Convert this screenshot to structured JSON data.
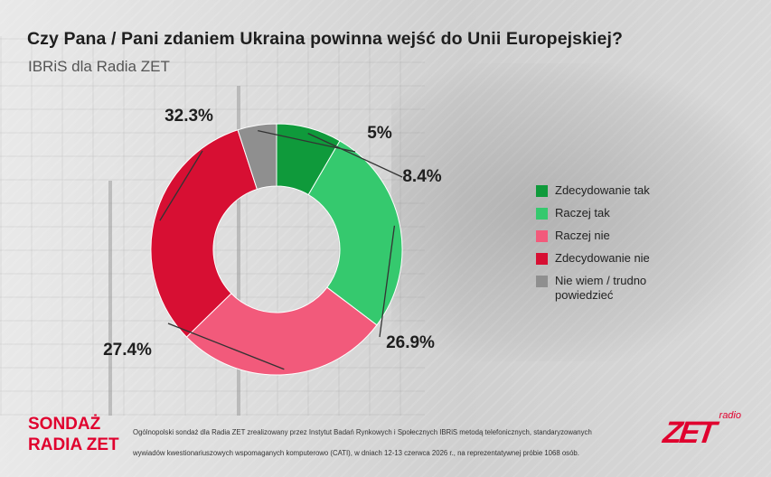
{
  "header": {
    "title": "Czy Pana / Pani zdaniem Ukraina powinna wejść do Unii Europejskiej?",
    "subtitle": "IBRiS dla Radia ZET"
  },
  "chart_data": {
    "type": "pie",
    "title": "Czy Pana / Pani zdaniem Ukraina powinna wejść do Unii Europejskiej?",
    "subtitle": "IBRiS dla Radia ZET",
    "categories": [
      "Zdecydowanie tak",
      "Raczej tak",
      "Raczej nie",
      "Zdecydowanie nie",
      "Nie wiem / trudno powiedzieć"
    ],
    "values": [
      8.4,
      26.9,
      27.4,
      32.3,
      5
    ],
    "value_labels": [
      "8.4%",
      "26.9%",
      "27.4%",
      "32.3%",
      "5%"
    ],
    "colors": [
      "#0f9a3b",
      "#35c96e",
      "#f25a7b",
      "#d70f33",
      "#8f8f8f"
    ],
    "donut": true,
    "start": "top, clockwise",
    "legend": "right"
  },
  "legend": {
    "items": [
      {
        "label": "Zdecydowanie tak",
        "color": "#0f9a3b"
      },
      {
        "label": "Raczej tak",
        "color": "#35c96e"
      },
      {
        "label": "Raczej nie",
        "color": "#f25a7b"
      },
      {
        "label": "Zdecydowanie nie",
        "color": "#d70f33"
      },
      {
        "label": "Nie wiem / trudno\npowiedzieć",
        "color": "#8f8f8f"
      }
    ]
  },
  "footer": {
    "brand_line1": "SONDAŻ",
    "brand_line2": "RADIA ZET",
    "note_line1": "Ogólnopolski sondaż dla Radia ZET zrealizowany przez Instytut Badań Rynkowych i Społecznych IBRiS metodą telefonicznych, standaryzowanych",
    "note_line2": "wywiadów kwestionariuszowych wspomaganych komputerowo (CATI), w dniach 12-13 czerwca 2026 r., na reprezentatywnej próbie 1068 osób.",
    "logo_small": "radio",
    "logo_main": "ZET",
    "brand_color": "#e0012e"
  }
}
